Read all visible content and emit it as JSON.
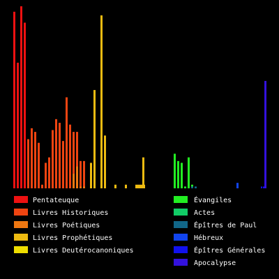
{
  "chart_data": {
    "type": "bar",
    "title": "",
    "xlabel": "",
    "ylabel": "",
    "ylim": [
      0,
      100
    ],
    "grid": false,
    "legend_placement": "bottom",
    "series": [
      {
        "name": "Pentateuque",
        "color": "#ee1111",
        "values": [
          97,
          69,
          100,
          91
        ]
      },
      {
        "name": "Livres Historiques",
        "color": "#ee4411",
        "values": [
          27,
          33,
          31,
          25,
          2,
          14,
          17,
          32,
          38,
          36,
          26,
          50,
          35,
          31,
          31,
          15,
          15
        ]
      },
      {
        "name": "Livres Poétiques",
        "color": "#ee7711",
        "values": [
          8,
          12,
          1,
          1
        ]
      },
      {
        "name": "Livres Prophétiques",
        "color": "#eebb11",
        "values": [
          14,
          54,
          95,
          29,
          2,
          2,
          2,
          2,
          2,
          2,
          2,
          17
        ]
      },
      {
        "name": "Livres Deutérocanoniques",
        "color": "#eedd00",
        "values": []
      },
      {
        "name": "Évangiles",
        "color": "#22ee22",
        "values": [
          19,
          15,
          14,
          1,
          17,
          2
        ]
      },
      {
        "name": "Actes",
        "color": "#11cc66",
        "values": []
      },
      {
        "name": "Épîtres de Paul",
        "color": "#116688",
        "values": [
          1,
          1
        ]
      },
      {
        "name": "Hébreux",
        "color": "#1144ee",
        "values": [
          3
        ]
      },
      {
        "name": "Épîtres Générales",
        "color": "#1111ee",
        "values": [
          1,
          1
        ]
      },
      {
        "name": "Apocalypse",
        "color": "#3311dd",
        "values": [
          59
        ]
      }
    ]
  }
}
